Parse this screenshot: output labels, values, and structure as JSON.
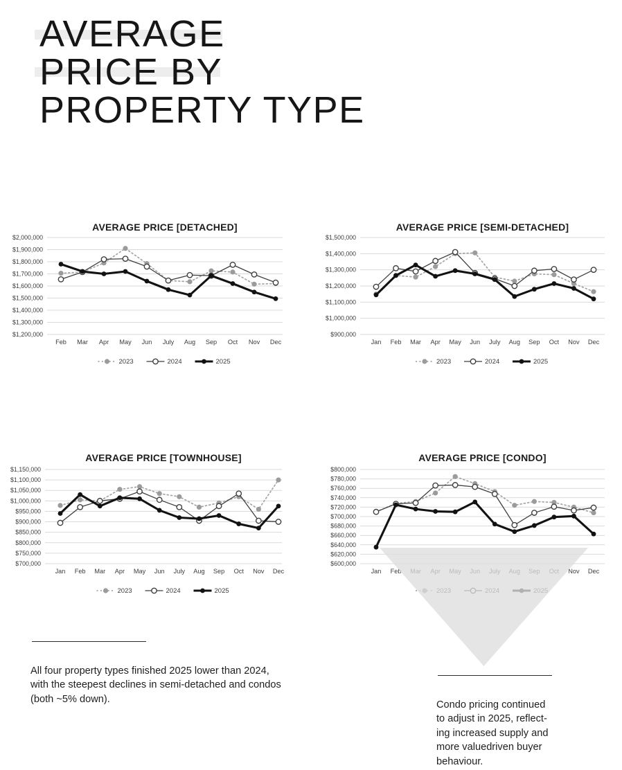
{
  "header": {
    "line1": "AVERAGE",
    "line2": "PRICE BY",
    "line3": "PROPERTY TYPE"
  },
  "notes": {
    "left_lines": [
      "All four property types finished 2025 lower than 2024,",
      "with the steepest declines in semi-detached and condos",
      "(both ~5% down)."
    ],
    "right_lines": [
      "Condo pricing continued",
      "to adjust in 2025, reflect-",
      "ing increased supply and",
      "more valuedriven buyer",
      "behaviour."
    ]
  },
  "colors": {
    "series_2023": "#a4a4a4",
    "series_2023_marker": "#9b9b9b",
    "series_2024": "#3f3f3f",
    "series_2025": "#121212",
    "gridline": "#d9d9d9",
    "axis_text": "#3c3c3c",
    "title_text": "#1c1c1c",
    "highlight_bar": "#ededed",
    "watermark": "#dedede"
  },
  "chart_data": [
    {
      "type": "line",
      "title": "AVERAGE PRICE [DETACHED]",
      "months": [
        "Feb",
        "Mar",
        "Apr",
        "May",
        "Jun",
        "July",
        "Aug",
        "Sep",
        "Oct",
        "Nov",
        "Dec"
      ],
      "ylim": [
        1200000,
        2000000
      ],
      "ytick_step": 100000,
      "grid": true,
      "legend_position": "bottom",
      "series": [
        {
          "name": "2023",
          "style": "dotted",
          "values": [
            1705000,
            1715000,
            1790000,
            1910000,
            1785000,
            1645000,
            1635000,
            1725000,
            1715000,
            1615000,
            1620000
          ]
        },
        {
          "name": "2024",
          "style": "open",
          "values": [
            1655000,
            1715000,
            1820000,
            1825000,
            1760000,
            1645000,
            1690000,
            1685000,
            1775000,
            1695000,
            1628000
          ]
        },
        {
          "name": "2025",
          "style": "bold",
          "values": [
            1780000,
            1720000,
            1700000,
            1720000,
            1640000,
            1570000,
            1525000,
            1685000,
            1620000,
            1550000,
            1495000
          ]
        }
      ]
    },
    {
      "type": "line",
      "title": "AVERAGE PRICE [SEMI-DETACHED]",
      "months": [
        "Jan",
        "Feb",
        "Mar",
        "Apr",
        "May",
        "Jun",
        "July",
        "Aug",
        "Sep",
        "Oct",
        "Nov",
        "Dec"
      ],
      "ylim": [
        900000,
        1500000
      ],
      "ytick_step": 100000,
      "grid": true,
      "legend_position": "bottom",
      "series": [
        {
          "name": "2023",
          "style": "dotted",
          "values": [
            1150000,
            1265000,
            1255000,
            1320000,
            1400000,
            1405000,
            1255000,
            1230000,
            1275000,
            1270000,
            1215000,
            1165000
          ]
        },
        {
          "name": "2024",
          "style": "open",
          "values": [
            1195000,
            1310000,
            1290000,
            1355000,
            1410000,
            1280000,
            1245000,
            1200000,
            1295000,
            1305000,
            1240000,
            1300000
          ]
        },
        {
          "name": "2025",
          "style": "bold",
          "values": [
            1145000,
            1265000,
            1330000,
            1260000,
            1295000,
            1275000,
            1240000,
            1135000,
            1180000,
            1215000,
            1185000,
            1120000
          ]
        }
      ]
    },
    {
      "type": "line",
      "title": "AVERAGE PRICE [TOWNHOUSE]",
      "months": [
        "Jan",
        "Feb",
        "Mar",
        "Apr",
        "May",
        "Jun",
        "July",
        "Aug",
        "Sep",
        "Oct",
        "Nov",
        "Dec"
      ],
      "ylim": [
        700000,
        1150000
      ],
      "ytick_step": 50000,
      "grid": true,
      "legend_position": "bottom",
      "series": [
        {
          "name": "2023",
          "style": "dotted",
          "values": [
            978000,
            1005000,
            1000000,
            1055000,
            1068000,
            1035000,
            1020000,
            970000,
            990000,
            1020000,
            960000,
            1100000
          ]
        },
        {
          "name": "2024",
          "style": "open",
          "values": [
            895000,
            970000,
            1000000,
            1010000,
            1045000,
            1005000,
            970000,
            905000,
            975000,
            1035000,
            905000,
            900000
          ]
        },
        {
          "name": "2025",
          "style": "bold",
          "values": [
            940000,
            1030000,
            975000,
            1015000,
            1010000,
            955000,
            920000,
            915000,
            930000,
            890000,
            870000,
            975000
          ]
        }
      ]
    },
    {
      "type": "line",
      "title": "AVERAGE PRICE [CONDO]",
      "months": [
        "Jan",
        "Feb",
        "Mar",
        "Apr",
        "May",
        "Jun",
        "July",
        "Aug",
        "Sep",
        "Oct",
        "Nov",
        "Dec"
      ],
      "ylim": [
        600000,
        800000
      ],
      "ytick_step": 20000,
      "grid": true,
      "legend_position": "bottom",
      "series": [
        {
          "name": "2023",
          "style": "dotted",
          "values": [
            710000,
            728000,
            732000,
            750000,
            785000,
            770000,
            753000,
            724000,
            732000,
            730000,
            720000,
            708000
          ]
        },
        {
          "name": "2024",
          "style": "open",
          "values": [
            710000,
            727000,
            729000,
            766000,
            767000,
            763000,
            748000,
            682000,
            708000,
            721000,
            713000,
            719000
          ]
        },
        {
          "name": "2025",
          "style": "bold",
          "values": [
            635000,
            725000,
            716000,
            711000,
            710000,
            731000,
            684000,
            668000,
            681000,
            699000,
            701000,
            663000
          ]
        }
      ]
    }
  ]
}
